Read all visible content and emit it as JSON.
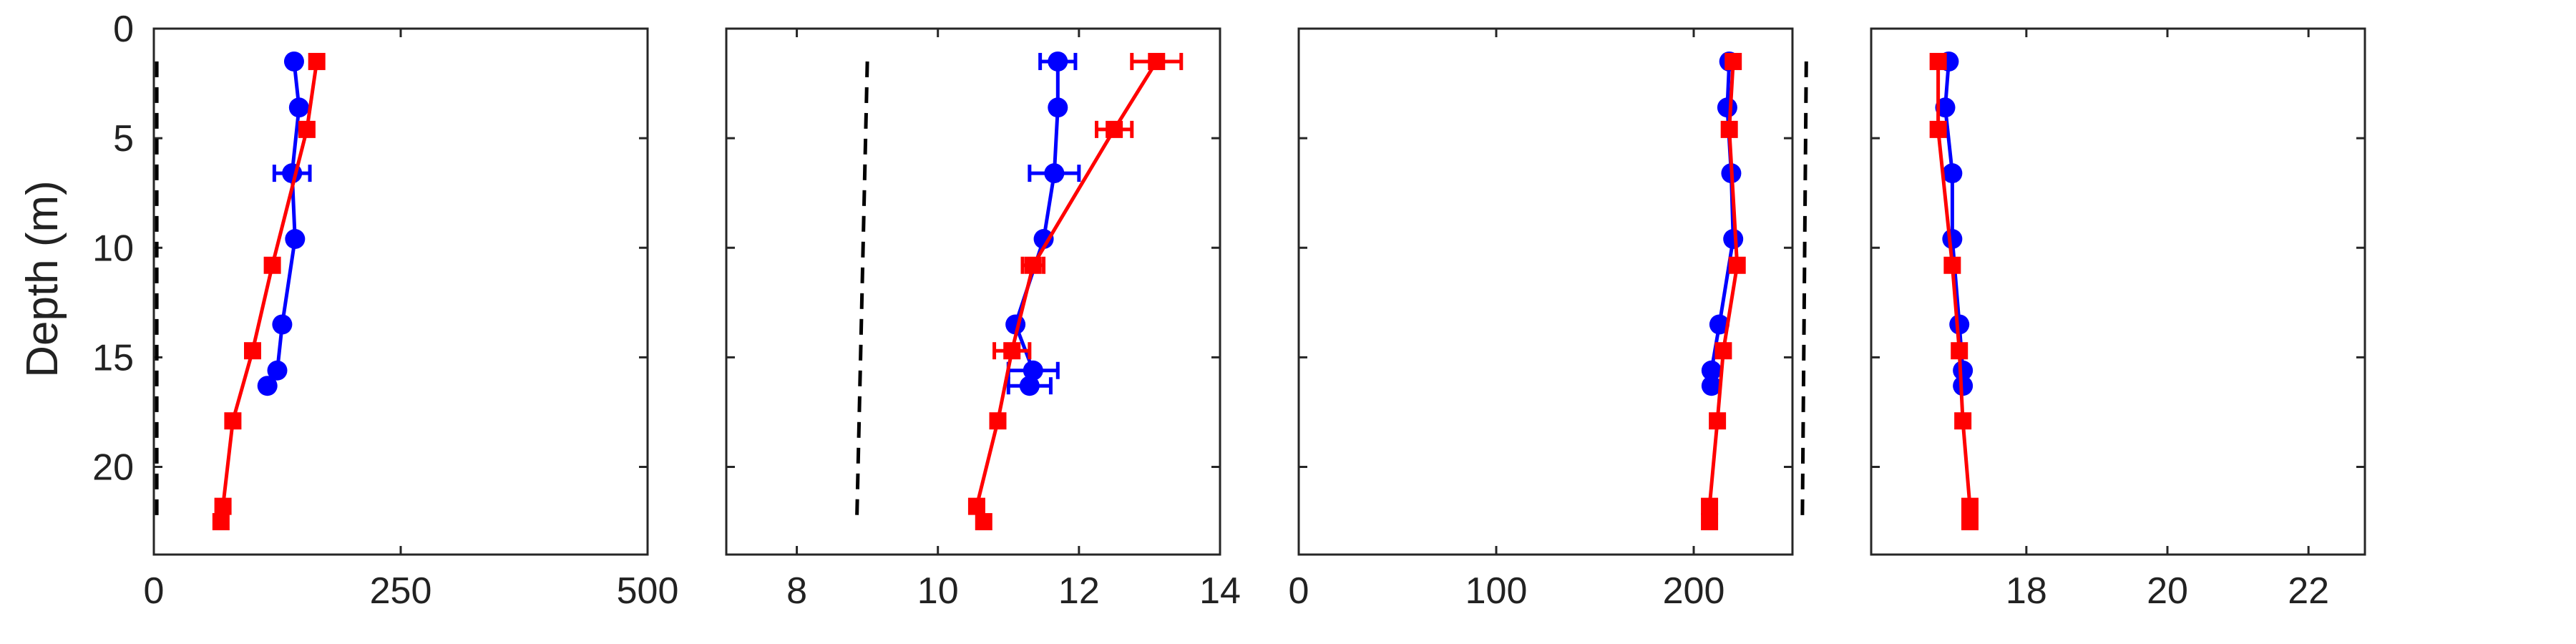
{
  "ylabel": "Depth (m)",
  "chart_data": [
    {
      "type": "line",
      "panel": 1,
      "xlim": [
        0,
        500
      ],
      "ylim": [
        24,
        0
      ],
      "y_reversed": true,
      "xticks": [
        0,
        250,
        500
      ],
      "yticks": [
        0,
        5,
        10,
        15,
        20
      ],
      "grid": false,
      "series": [
        {
          "color": "#0000ff",
          "marker": "circle",
          "x": [
            142,
            147,
            140,
            143,
            130,
            125,
            115
          ],
          "y": [
            1.5,
            3.6,
            6.6,
            9.6,
            13.5,
            15.6,
            16.3
          ],
          "xerr": [
            0,
            0,
            18,
            0,
            0,
            0,
            0
          ]
        },
        {
          "color": "#ff0000",
          "marker": "square",
          "x": [
            165,
            155,
            120,
            100,
            80,
            70,
            68
          ],
          "y": [
            1.5,
            4.6,
            10.8,
            14.7,
            17.9,
            21.8,
            22.5
          ],
          "xerr": [
            0,
            0,
            0,
            0,
            0,
            0,
            0
          ]
        },
        {
          "color": "#000000",
          "style": "dashed",
          "x": [
            3,
            3
          ],
          "y": [
            1.5,
            22.5
          ]
        }
      ]
    },
    {
      "type": "line",
      "panel": 2,
      "xlim": [
        7,
        14
      ],
      "ylim": [
        24,
        0
      ],
      "y_reversed": true,
      "xticks": [
        8,
        10,
        12,
        14
      ],
      "yticks": [
        0,
        5,
        10,
        15,
        20
      ],
      "grid": false,
      "series": [
        {
          "color": "#0000ff",
          "marker": "circle",
          "x": [
            11.7,
            11.7,
            11.65,
            11.5,
            11.1,
            11.35,
            11.3
          ],
          "y": [
            1.5,
            3.6,
            6.6,
            9.6,
            13.5,
            15.6,
            16.3
          ],
          "xerr": [
            0.25,
            0,
            0.35,
            0,
            0,
            0.35,
            0.3
          ]
        },
        {
          "color": "#ff0000",
          "marker": "square",
          "x": [
            13.1,
            12.5,
            11.35,
            11.05,
            10.85,
            10.55,
            10.65
          ],
          "y": [
            1.5,
            4.6,
            10.8,
            14.7,
            17.9,
            21.8,
            22.5
          ],
          "xerr": [
            0.35,
            0.25,
            0.15,
            0.25,
            0,
            0,
            0
          ]
        },
        {
          "color": "#000000",
          "style": "dashed",
          "x": [
            9.0,
            8.85
          ],
          "y": [
            1.5,
            22.5
          ]
        }
      ]
    },
    {
      "type": "line",
      "panel": 3,
      "xlim": [
        0,
        250
      ],
      "ylim": [
        24,
        0
      ],
      "y_reversed": true,
      "xticks": [
        0,
        100,
        200
      ],
      "yticks": [
        0,
        5,
        10,
        15,
        20
      ],
      "grid": false,
      "series": [
        {
          "color": "#0000ff",
          "marker": "circle",
          "x": [
            218,
            217,
            219,
            220,
            213,
            209,
            209
          ],
          "y": [
            1.5,
            3.6,
            6.6,
            9.6,
            13.5,
            15.6,
            16.3
          ],
          "xerr": [
            0,
            0,
            0,
            0,
            0,
            0,
            0
          ]
        },
        {
          "color": "#ff0000",
          "marker": "square",
          "x": [
            220,
            218,
            222,
            215,
            212,
            208,
            208
          ],
          "y": [
            1.5,
            4.6,
            10.8,
            14.7,
            17.9,
            21.8,
            22.5
          ],
          "xerr": [
            0,
            0,
            0,
            0,
            0,
            0,
            0
          ]
        },
        {
          "color": "#000000",
          "style": "dashed",
          "x": [
            257,
            255
          ],
          "y": [
            1.5,
            22.5
          ]
        }
      ]
    },
    {
      "type": "line",
      "panel": 4,
      "xlim": [
        15.8,
        22.8
      ],
      "ylim": [
        24,
        0
      ],
      "y_reversed": true,
      "xticks": [
        18,
        20,
        22
      ],
      "yticks": [
        0,
        5,
        10,
        15,
        20
      ],
      "grid": false,
      "series": [
        {
          "color": "#0000ff",
          "marker": "circle",
          "x": [
            16.9,
            16.85,
            16.95,
            16.95,
            17.05,
            17.1,
            17.1
          ],
          "y": [
            1.5,
            3.6,
            6.6,
            9.6,
            13.5,
            15.6,
            16.3
          ],
          "xerr": [
            0,
            0,
            0,
            0,
            0,
            0,
            0
          ]
        },
        {
          "color": "#ff0000",
          "marker": "square",
          "x": [
            16.75,
            16.75,
            16.95,
            17.05,
            17.1,
            17.2,
            17.2
          ],
          "y": [
            1.5,
            4.6,
            10.8,
            14.7,
            17.9,
            21.8,
            22.5
          ],
          "xerr": [
            0,
            0,
            0,
            0,
            0,
            0,
            0
          ]
        }
      ]
    }
  ]
}
